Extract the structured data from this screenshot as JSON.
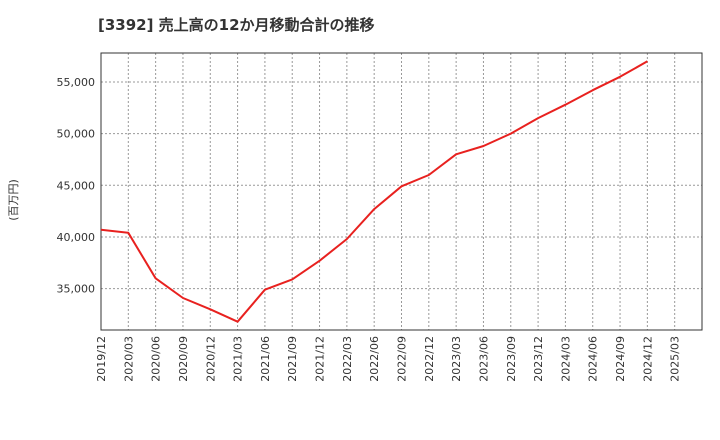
{
  "chart_data": {
    "type": "line",
    "title": "[3392]  売上高の12か月移動合計の推移",
    "ylabel": "(百万円)",
    "xlabel": "",
    "ylim": [
      31000,
      57800
    ],
    "y_ticks": [
      35000,
      40000,
      45000,
      50000,
      55000
    ],
    "y_tick_labels": [
      "35,000",
      "40,000",
      "45,000",
      "50,000",
      "55,000"
    ],
    "x_tick_labels": [
      "2019/12",
      "2020/03",
      "2020/06",
      "2020/09",
      "2020/12",
      "2021/03",
      "2021/06",
      "2021/09",
      "2021/12",
      "2022/03",
      "2022/06",
      "2022/09",
      "2022/12",
      "2023/03",
      "2023/06",
      "2023/09",
      "2023/12",
      "2024/03",
      "2024/06",
      "2024/09",
      "2024/12",
      "2025/03"
    ],
    "grid": true,
    "series": [
      {
        "name": "売上高の12か月移動合計",
        "color": "#e8211f",
        "x": [
          "2019/12",
          "2020/03",
          "2020/06",
          "2020/09",
          "2020/12",
          "2021/03",
          "2021/06",
          "2021/09",
          "2021/12",
          "2022/03",
          "2022/06",
          "2022/09",
          "2022/12",
          "2023/03",
          "2023/06",
          "2023/09",
          "2023/12",
          "2024/03",
          "2024/06",
          "2024/09",
          "2024/12"
        ],
        "values": [
          40700,
          40400,
          36000,
          34100,
          33000,
          31800,
          34900,
          35900,
          37700,
          39800,
          42700,
          44900,
          46000,
          48000,
          48800,
          50000,
          51500,
          52800,
          54200,
          55500,
          57000
        ]
      }
    ]
  }
}
